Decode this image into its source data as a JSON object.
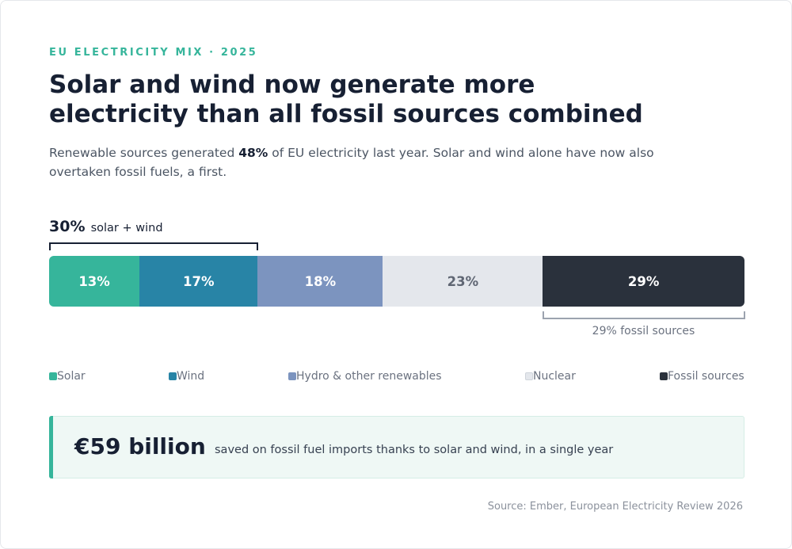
{
  "eyebrow": "EU ELECTRICITY MIX · 2025",
  "headline": {
    "line1": "Solar and wind now generate more",
    "line2": "electricity than all fossil sources combined"
  },
  "dek": {
    "before": "Renewable sources generated ",
    "highlight": "48%",
    "after": " of EU electricity last year. Solar and wind alone have now also",
    "line2": "overtaken fossil fuels, a first."
  },
  "callouts": {
    "solar_wind_value": "30%",
    "solar_wind_text": "solar + wind",
    "fossil_text": "29% fossil sources"
  },
  "chart_data": {
    "type": "bar",
    "orientation": "horizontal-stacked",
    "unit": "%",
    "categories": [
      "Solar",
      "Wind",
      "Hydro & other renewables",
      "Nuclear",
      "Fossil sources"
    ],
    "values": [
      13,
      17,
      18,
      23,
      29
    ],
    "labels": [
      "13%",
      "17%",
      "18%",
      "23%",
      "29%"
    ],
    "colors": [
      "#36b59b",
      "#2884a6",
      "#7c94bf",
      "#e4e7ec",
      "#2a313c"
    ],
    "label_colors": [
      "#ffffff",
      "#ffffff",
      "#ffffff",
      "#5f6673",
      "#ffffff"
    ],
    "legend_position": "bottom"
  },
  "stat": {
    "value": "€59 billion",
    "text": "saved on fossil fuel imports thanks to solar and wind, in a single year",
    "accent_color": "#36b59b"
  },
  "source": "Source: Ember, European Electricity Review 2026"
}
